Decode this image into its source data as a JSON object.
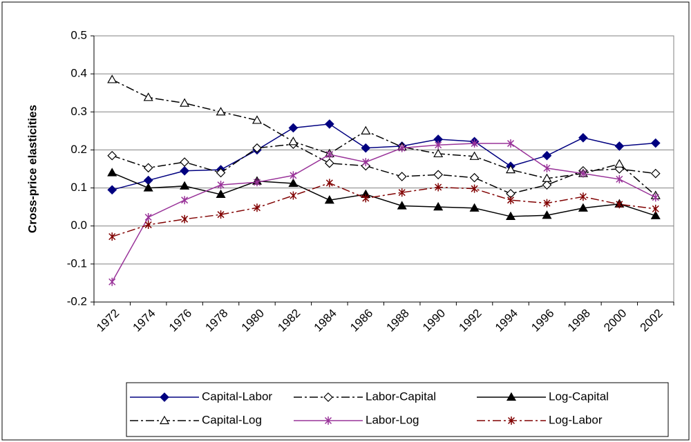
{
  "chart_data": {
    "type": "line",
    "y_label": "Cross-price elasticities",
    "categories": [
      "1972",
      "1974",
      "1976",
      "1978",
      "1980",
      "1982",
      "1984",
      "1986",
      "1988",
      "1990",
      "1992",
      "1994",
      "1996",
      "1998",
      "2000",
      "2002"
    ],
    "ylim": [
      -0.2,
      0.5
    ],
    "yticks": [
      -0.2,
      -0.1,
      {
        "value": 0,
        "label": "0.0"
      },
      0.1,
      0.2,
      0.3,
      0.4,
      0.5
    ],
    "grid": true,
    "legend": "bottom",
    "series": [
      {
        "name": "Capital-Labor",
        "color": "#000080",
        "dash": "solid",
        "marker": "diamond",
        "marker_fill": true,
        "values": [
          0.095,
          0.12,
          0.145,
          0.148,
          0.2,
          0.258,
          0.268,
          0.205,
          0.21,
          0.228,
          0.222,
          0.157,
          0.185,
          0.232,
          0.21,
          0.218
        ]
      },
      {
        "name": "Labor-Capital",
        "color": "#000000",
        "dash": "dashdot",
        "marker": "diamond",
        "marker_fill": false,
        "values": [
          0.185,
          0.153,
          0.168,
          0.14,
          0.205,
          0.215,
          0.165,
          0.158,
          0.13,
          0.135,
          0.127,
          0.085,
          0.108,
          0.145,
          0.15,
          0.138
        ]
      },
      {
        "name": "Log-Capital",
        "color": "#000000",
        "dash": "solid",
        "marker": "triangle",
        "marker_fill": true,
        "values": [
          0.14,
          0.1,
          0.105,
          0.083,
          0.118,
          0.112,
          0.068,
          0.083,
          0.053,
          0.05,
          0.047,
          0.025,
          0.028,
          0.047,
          0.058,
          0.027
        ]
      },
      {
        "name": "Capital-Log",
        "color": "#000000",
        "dash": "dashdot",
        "marker": "triangle",
        "marker_fill": false,
        "values": [
          0.385,
          0.338,
          0.323,
          0.3,
          0.278,
          0.222,
          0.19,
          0.25,
          0.208,
          0.19,
          0.183,
          0.148,
          0.125,
          0.138,
          0.163,
          0.08
        ]
      },
      {
        "name": "Labor-Log",
        "color": "#993399",
        "dash": "solid",
        "marker": "star",
        "marker_fill": false,
        "values": [
          -0.147,
          0.023,
          0.068,
          0.108,
          0.115,
          0.133,
          0.188,
          0.168,
          0.205,
          0.213,
          0.217,
          0.217,
          0.152,
          0.138,
          0.123,
          0.075
        ]
      },
      {
        "name": "Log-Labor",
        "color": "#800000",
        "dash": "dashdot",
        "marker": "star",
        "marker_fill": false,
        "values": [
          -0.028,
          0.003,
          0.018,
          0.03,
          0.048,
          0.08,
          0.113,
          0.073,
          0.088,
          0.102,
          0.098,
          0.068,
          0.06,
          0.077,
          0.057,
          0.045
        ]
      }
    ]
  }
}
